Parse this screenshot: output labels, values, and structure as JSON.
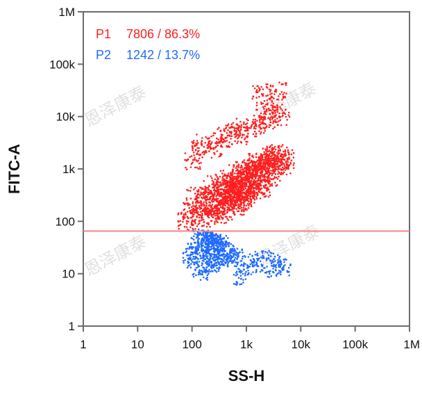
{
  "chart_data": {
    "type": "scatter",
    "xlabel": "SS-H",
    "ylabel": "FITC-A",
    "x_scale": "log",
    "y_scale": "log",
    "xlim": [
      1,
      1000000
    ],
    "ylim": [
      1,
      1000000
    ],
    "x_ticks": [
      "1",
      "10",
      "100",
      "1k",
      "10k",
      "100k",
      "1M"
    ],
    "y_ticks": [
      "1",
      "10",
      "100",
      "1k",
      "10k",
      "100k",
      "1M"
    ],
    "gate_threshold_y": 65,
    "gate_line_color": "#ff8080",
    "legend_position": "top-left",
    "series": [
      {
        "name": "P1",
        "count_label": "7806 / 86.3%",
        "color": "#ff1f1f",
        "points": [
          [
            80,
            100
          ],
          [
            100,
            150
          ],
          [
            120,
            300
          ],
          [
            150,
            200
          ],
          [
            180,
            250
          ],
          [
            200,
            400
          ],
          [
            250,
            300
          ],
          [
            300,
            500
          ],
          [
            350,
            350
          ],
          [
            400,
            600
          ],
          [
            450,
            400
          ],
          [
            500,
            700
          ],
          [
            600,
            500
          ],
          [
            700,
            800
          ],
          [
            800,
            600
          ],
          [
            900,
            900
          ],
          [
            1000,
            700
          ],
          [
            1100,
            1000
          ],
          [
            1200,
            800
          ],
          [
            1300,
            1200
          ],
          [
            1500,
            900
          ],
          [
            1700,
            1300
          ],
          [
            2000,
            1100
          ],
          [
            2200,
            1500
          ],
          [
            2500,
            1200
          ],
          [
            3000,
            1800
          ],
          [
            3500,
            1400
          ],
          [
            4000,
            2000
          ],
          [
            4500,
            1200
          ],
          [
            5000,
            1500
          ],
          [
            150,
            120
          ],
          [
            200,
            130
          ],
          [
            300,
            140
          ],
          [
            400,
            160
          ],
          [
            600,
            200
          ],
          [
            900,
            250
          ],
          [
            1200,
            300
          ],
          [
            1800,
            400
          ],
          [
            110,
            1500
          ],
          [
            150,
            3000
          ],
          [
            250,
            2500
          ],
          [
            350,
            4000
          ],
          [
            500,
            5000
          ],
          [
            700,
            4500
          ],
          [
            1000,
            6000
          ],
          [
            1500,
            7000
          ],
          [
            2200,
            9000
          ],
          [
            3000,
            12000
          ],
          [
            2000,
            25000
          ],
          [
            3500,
            30000
          ],
          [
            4000,
            10000
          ],
          [
            700,
            250
          ],
          [
            900,
            350
          ],
          [
            1100,
            450
          ],
          [
            1400,
            500
          ],
          [
            1800,
            600
          ],
          [
            2400,
            700
          ],
          [
            3200,
            900
          ],
          [
            260,
            180
          ],
          [
            320,
            220
          ],
          [
            420,
            260
          ],
          [
            520,
            300
          ],
          [
            620,
            340
          ],
          [
            720,
            380
          ],
          [
            820,
            420
          ],
          [
            920,
            460
          ]
        ]
      },
      {
        "name": "P2",
        "count_label": "1242 / 13.7%",
        "color": "#1f6bff",
        "points": [
          [
            90,
            20
          ],
          [
            100,
            30
          ],
          [
            110,
            15
          ],
          [
            120,
            25
          ],
          [
            130,
            40
          ],
          [
            140,
            10
          ],
          [
            150,
            35
          ],
          [
            160,
            20
          ],
          [
            170,
            50
          ],
          [
            180,
            12
          ],
          [
            190,
            28
          ],
          [
            200,
            45
          ],
          [
            210,
            18
          ],
          [
            220,
            22
          ],
          [
            230,
            38
          ],
          [
            240,
            14
          ],
          [
            250,
            30
          ],
          [
            260,
            42
          ],
          [
            280,
            16
          ],
          [
            300,
            26
          ],
          [
            320,
            36
          ],
          [
            350,
            19
          ],
          [
            380,
            24
          ],
          [
            420,
            33
          ],
          [
            460,
            21
          ],
          [
            520,
            27
          ],
          [
            600,
            18
          ],
          [
            700,
            23
          ],
          [
            800,
            8
          ],
          [
            900,
            12
          ],
          [
            1200,
            18
          ],
          [
            1600,
            14
          ],
          [
            2000,
            22
          ],
          [
            2600,
            11
          ],
          [
            3200,
            19
          ],
          [
            4000,
            15
          ],
          [
            4800,
            12
          ],
          [
            135,
            55
          ],
          [
            175,
            48
          ],
          [
            215,
            52
          ],
          [
            265,
            46
          ],
          [
            310,
            44
          ],
          [
            370,
            40
          ]
        ]
      }
    ],
    "watermark": "恩泽康泰"
  }
}
